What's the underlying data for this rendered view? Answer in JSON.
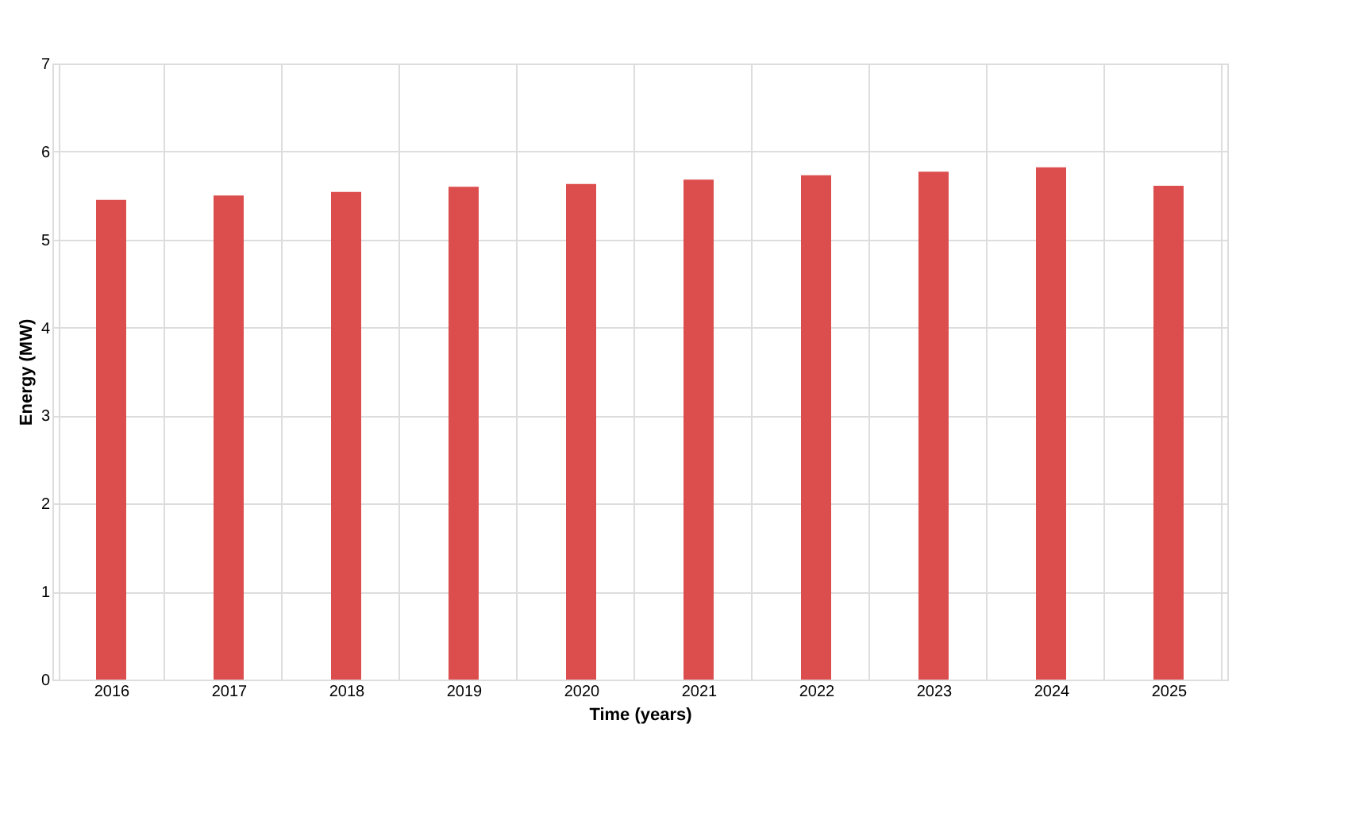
{
  "chart_data": {
    "type": "bar",
    "xlabel": "Time (years)",
    "ylabel": "Energy (MW)",
    "categories": [
      "2016",
      "2017",
      "2018",
      "2019",
      "2020",
      "2021",
      "2022",
      "2023",
      "2024",
      "2025"
    ],
    "series": [
      {
        "color": "#dc4e4d",
        "values": [
          5.45,
          5.5,
          5.54,
          5.6,
          5.63,
          5.68,
          5.73,
          5.77,
          5.82,
          5.61
        ]
      }
    ],
    "ylim": [
      0,
      7
    ],
    "yticks": [
      0,
      1,
      2,
      3,
      4,
      5,
      6,
      7
    ],
    "grid": true,
    "legend": false
  }
}
